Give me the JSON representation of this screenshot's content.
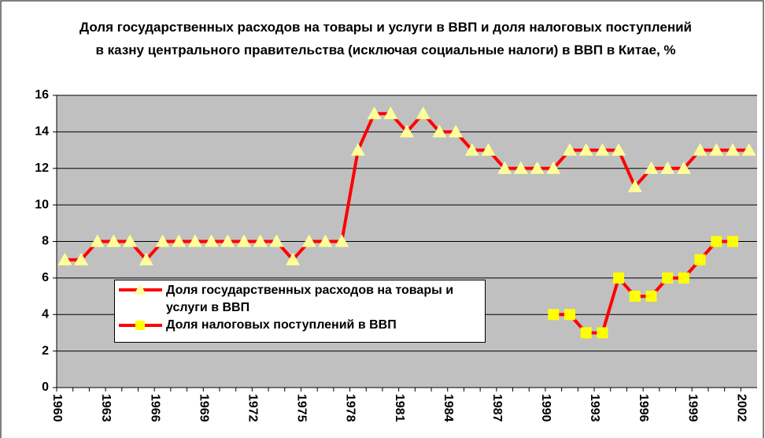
{
  "chart_data": {
    "type": "line",
    "title": "Доля государственных расходов на товары и услуги в ВВП и доля налоговых поступлений в казну центрального правительства (исключая социальные налоги) в ВВП в Китае, %",
    "categories": [
      "1960",
      null,
      null,
      "1963",
      null,
      null,
      "1966",
      null,
      null,
      "1969",
      null,
      null,
      "1972",
      null,
      null,
      "1975",
      null,
      null,
      "1978",
      null,
      null,
      "1981",
      null,
      null,
      "1984",
      null,
      null,
      "1987",
      null,
      null,
      "1990",
      null,
      null,
      "1993",
      null,
      null,
      "1996",
      null,
      null,
      "1999",
      null,
      null,
      "2002"
    ],
    "series": [
      {
        "name": "Доля государственных расходов на товары и услуги в ВВП",
        "color": "#ff0000",
        "marker": "triangle",
        "marker_color": "#ffff99",
        "values": [
          7,
          7,
          8,
          8,
          8,
          7,
          8,
          8,
          8,
          8,
          8,
          8,
          8,
          8,
          7,
          8,
          8,
          8,
          13,
          15,
          15,
          14,
          15,
          14,
          14,
          13,
          13,
          12,
          12,
          12,
          12,
          13,
          13,
          13,
          13,
          11,
          12,
          12,
          12,
          13,
          13,
          13,
          13
        ]
      },
      {
        "name": "Доля налоговых поступлений в ВВП",
        "color": "#ff0000",
        "marker": "square",
        "marker_color": "#ffff00",
        "values": [
          null,
          null,
          null,
          null,
          null,
          null,
          null,
          null,
          null,
          null,
          null,
          null,
          null,
          null,
          null,
          null,
          null,
          null,
          null,
          null,
          null,
          null,
          null,
          null,
          null,
          null,
          null,
          null,
          null,
          null,
          4,
          4,
          3,
          3,
          6,
          5,
          5,
          6,
          6,
          7,
          8,
          8,
          null
        ]
      }
    ],
    "ylim": [
      0,
      16
    ],
    "yticks": [
      0,
      2,
      4,
      6,
      8,
      10,
      12,
      14,
      16
    ],
    "grid": true,
    "plot_background": "#c0c0c0"
  }
}
